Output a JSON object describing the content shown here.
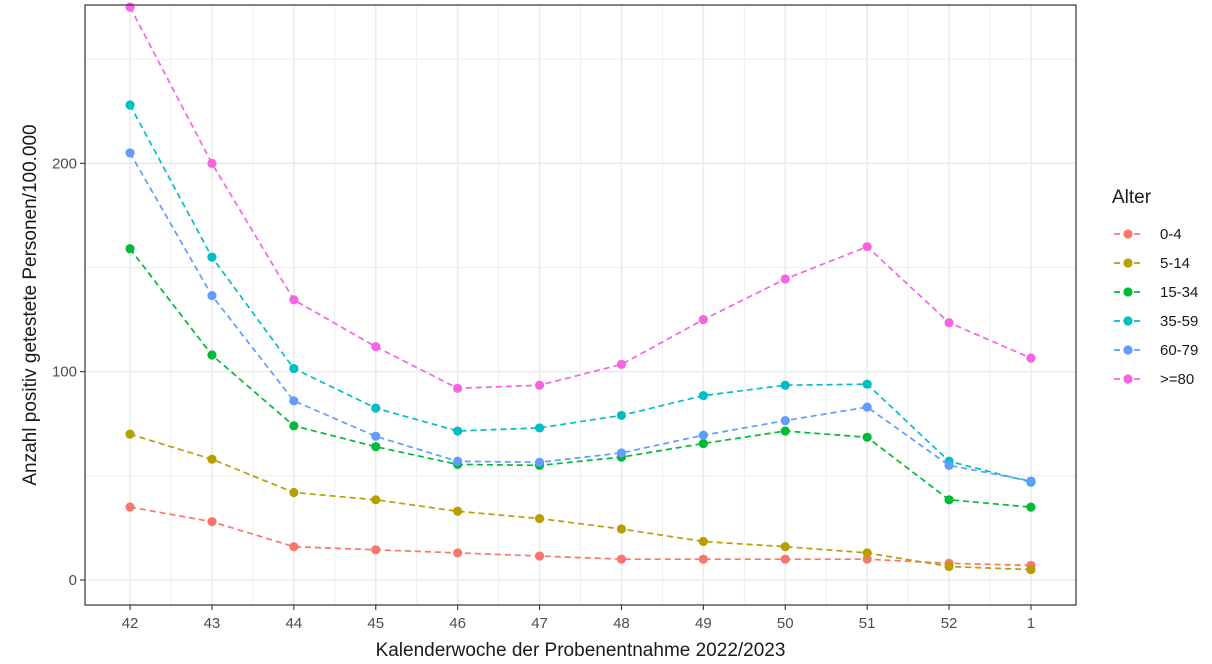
{
  "chart_data": {
    "type": "line",
    "xlabel": "Kalenderwoche der Probenentnahme 2022/2023",
    "ylabel": "Anzahl positiv getestete Personen/100.000",
    "categories": [
      "42",
      "43",
      "44",
      "45",
      "46",
      "47",
      "48",
      "49",
      "50",
      "51",
      "52",
      "1"
    ],
    "ylim": [
      -12,
      276
    ],
    "yticks": [
      0,
      100,
      200
    ],
    "ytick_labels": [
      "0",
      "100",
      "200"
    ],
    "grid": true,
    "line_style": "dashed",
    "legend": {
      "title": "Alter",
      "position": "right"
    },
    "series": [
      {
        "name": "0-4",
        "color": "#F8766D",
        "values": [
          35,
          28,
          16,
          14.5,
          13,
          11.5,
          10,
          10,
          10,
          10,
          8,
          7
        ]
      },
      {
        "name": "5-14",
        "color": "#B79F00",
        "values": [
          70,
          58,
          42,
          38.5,
          33,
          29.5,
          24.5,
          18.5,
          16,
          13,
          6.5,
          5
        ]
      },
      {
        "name": "15-34",
        "color": "#00BA38",
        "values": [
          159,
          108,
          74,
          64,
          55.5,
          55,
          59,
          65.5,
          71.5,
          68.5,
          38.5,
          35
        ]
      },
      {
        "name": "35-59",
        "color": "#00BFC4",
        "values": [
          228,
          155,
          101.5,
          82.5,
          71.5,
          73,
          79,
          88.5,
          93.5,
          94,
          57,
          47
        ]
      },
      {
        "name": "60-79",
        "color": "#619CFF",
        "values": [
          205,
          136.5,
          86,
          69,
          57,
          56.5,
          61,
          69.5,
          76.5,
          83,
          55,
          47.5
        ]
      },
      {
        "name": ">=80",
        "color": "#F564E3",
        "values": [
          275,
          200,
          134.5,
          112,
          92,
          93.5,
          103.5,
          125,
          144.5,
          160,
          123.5,
          106.5
        ]
      }
    ]
  }
}
